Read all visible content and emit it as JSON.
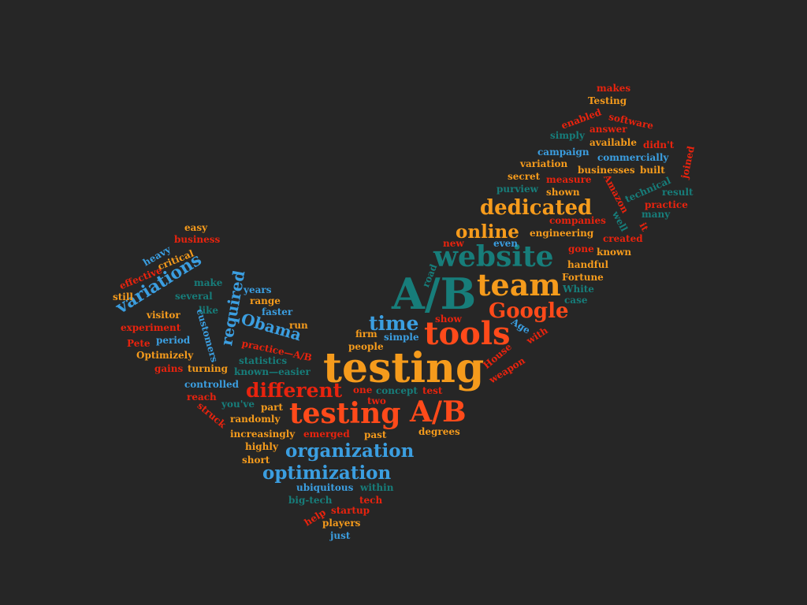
{
  "palette": {
    "background": "#262626",
    "red": "#e8230e",
    "orange": "#ff4a1a",
    "gold": "#f59b1c",
    "blue": "#3b9ee0",
    "teal": "#177d7a"
  },
  "words": [
    {
      "id": "w1",
      "text": "testing",
      "color": "#f59b1c"
    },
    {
      "id": "w2",
      "text": "A/B",
      "color": "#177d7a"
    },
    {
      "id": "w3",
      "text": "website",
      "color": "#177d7a"
    },
    {
      "id": "w4",
      "text": "team",
      "color": "#f59b1c"
    },
    {
      "id": "w5",
      "text": "tools",
      "color": "#ff4a1a"
    },
    {
      "id": "w6",
      "text": "testing",
      "color": "#ff4a1a"
    },
    {
      "id": "w7",
      "text": "A/B",
      "color": "#ff4a1a"
    },
    {
      "id": "w8",
      "text": "dedicated",
      "color": "#f59b1c"
    },
    {
      "id": "w9",
      "text": "online",
      "color": "#f59b1c"
    },
    {
      "id": "w10",
      "text": "Google",
      "color": "#ff4a1a"
    },
    {
      "id": "w11",
      "text": "time",
      "color": "#3b9ee0"
    },
    {
      "id": "w12",
      "text": "different",
      "color": "#e8230e"
    },
    {
      "id": "w13",
      "text": "organization",
      "color": "#3b9ee0"
    },
    {
      "id": "w14",
      "text": "optimization",
      "color": "#3b9ee0"
    },
    {
      "id": "w15",
      "text": "Obama",
      "color": "#3b9ee0"
    },
    {
      "id": "w16",
      "text": "variations",
      "color": "#3b9ee0"
    },
    {
      "id": "w17",
      "text": "required",
      "color": "#3b9ee0"
    },
    {
      "id": "w18",
      "text": "makes",
      "color": "#e8230e"
    },
    {
      "id": "w19",
      "text": "Testing",
      "color": "#f59b1c"
    },
    {
      "id": "w20",
      "text": "enabled",
      "color": "#e8230e"
    },
    {
      "id": "w21",
      "text": "software",
      "color": "#e8230e"
    },
    {
      "id": "w22",
      "text": "answer",
      "color": "#e8230e"
    },
    {
      "id": "w23",
      "text": "simply",
      "color": "#177d7a"
    },
    {
      "id": "w24",
      "text": "available",
      "color": "#f59b1c"
    },
    {
      "id": "w25",
      "text": "didn't",
      "color": "#e8230e"
    },
    {
      "id": "w26",
      "text": "campaign",
      "color": "#3b9ee0"
    },
    {
      "id": "w27",
      "text": "commercially",
      "color": "#3b9ee0"
    },
    {
      "id": "w28",
      "text": "joined",
      "color": "#e8230e"
    },
    {
      "id": "w29",
      "text": "variation",
      "color": "#f59b1c"
    },
    {
      "id": "w30",
      "text": "businesses",
      "color": "#f59b1c"
    },
    {
      "id": "w31",
      "text": "built",
      "color": "#f59b1c"
    },
    {
      "id": "w32",
      "text": "secret",
      "color": "#f59b1c"
    },
    {
      "id": "w33",
      "text": "measure",
      "color": "#e8230e"
    },
    {
      "id": "w34",
      "text": "technical",
      "color": "#177d7a"
    },
    {
      "id": "w35",
      "text": "purview",
      "color": "#177d7a"
    },
    {
      "id": "w36",
      "text": "shown",
      "color": "#f59b1c"
    },
    {
      "id": "w37",
      "text": "result",
      "color": "#177d7a"
    },
    {
      "id": "w38",
      "text": "Amazon",
      "color": "#e8230e"
    },
    {
      "id": "w39",
      "text": "it",
      "color": "#e8230e"
    },
    {
      "id": "w40",
      "text": "practice",
      "color": "#e8230e"
    },
    {
      "id": "w41",
      "text": "companies",
      "color": "#e8230e"
    },
    {
      "id": "w42",
      "text": "well",
      "color": "#177d7a"
    },
    {
      "id": "w43",
      "text": "many",
      "color": "#177d7a"
    },
    {
      "id": "w44",
      "text": "engineering",
      "color": "#f59b1c"
    },
    {
      "id": "w45",
      "text": "created",
      "color": "#e8230e"
    },
    {
      "id": "w46",
      "text": "new",
      "color": "#e8230e"
    },
    {
      "id": "w47",
      "text": "even",
      "color": "#3b9ee0"
    },
    {
      "id": "w48",
      "text": "gone",
      "color": "#e8230e"
    },
    {
      "id": "w49",
      "text": "known",
      "color": "#f59b1c"
    },
    {
      "id": "w50",
      "text": "handful",
      "color": "#f59b1c"
    },
    {
      "id": "w51",
      "text": "Fortune",
      "color": "#f59b1c"
    },
    {
      "id": "w52",
      "text": "White",
      "color": "#177d7a"
    },
    {
      "id": "w53",
      "text": "case",
      "color": "#177d7a"
    },
    {
      "id": "w54",
      "text": "road",
      "color": "#177d7a"
    },
    {
      "id": "w55",
      "text": "show",
      "color": "#e8230e"
    },
    {
      "id": "w56",
      "text": "Age",
      "color": "#3b9ee0"
    },
    {
      "id": "w57",
      "text": "with",
      "color": "#e8230e"
    },
    {
      "id": "w58",
      "text": "House",
      "color": "#e8230e"
    },
    {
      "id": "w59",
      "text": "weapon",
      "color": "#e8230e"
    },
    {
      "id": "w60",
      "text": "firm",
      "color": "#f59b1c"
    },
    {
      "id": "w61",
      "text": "simple",
      "color": "#3b9ee0"
    },
    {
      "id": "w62",
      "text": "people",
      "color": "#f59b1c"
    },
    {
      "id": "w63",
      "text": "one",
      "color": "#e8230e"
    },
    {
      "id": "w64",
      "text": "concept",
      "color": "#177d7a"
    },
    {
      "id": "w65",
      "text": "test",
      "color": "#e8230e"
    },
    {
      "id": "w66",
      "text": "two",
      "color": "#e8230e"
    },
    {
      "id": "w67",
      "text": "part",
      "color": "#f59b1c"
    },
    {
      "id": "w68",
      "text": "degrees",
      "color": "#f59b1c"
    },
    {
      "id": "w69",
      "text": "past",
      "color": "#f59b1c"
    },
    {
      "id": "w70",
      "text": "emerged",
      "color": "#e8230e"
    },
    {
      "id": "w71",
      "text": "easy",
      "color": "#f59b1c"
    },
    {
      "id": "w72",
      "text": "business",
      "color": "#e8230e"
    },
    {
      "id": "w73",
      "text": "heavy",
      "color": "#3b9ee0"
    },
    {
      "id": "w74",
      "text": "critical",
      "color": "#f59b1c"
    },
    {
      "id": "w75",
      "text": "effective",
      "color": "#e8230e"
    },
    {
      "id": "w76",
      "text": "make",
      "color": "#177d7a"
    },
    {
      "id": "w77",
      "text": "still",
      "color": "#f59b1c"
    },
    {
      "id": "w78",
      "text": "several",
      "color": "#177d7a"
    },
    {
      "id": "w79",
      "text": "years",
      "color": "#3b9ee0"
    },
    {
      "id": "w80",
      "text": "range",
      "color": "#f59b1c"
    },
    {
      "id": "w81",
      "text": "visitor",
      "color": "#f59b1c"
    },
    {
      "id": "w82",
      "text": "like",
      "color": "#177d7a"
    },
    {
      "id": "w83",
      "text": "faster",
      "color": "#3b9ee0"
    },
    {
      "id": "w84",
      "text": "experiment",
      "color": "#e8230e"
    },
    {
      "id": "w85",
      "text": "run",
      "color": "#f59b1c"
    },
    {
      "id": "w86",
      "text": "customers",
      "color": "#3b9ee0"
    },
    {
      "id": "w87",
      "text": "Pete",
      "color": "#e8230e"
    },
    {
      "id": "w88",
      "text": "period",
      "color": "#3b9ee0"
    },
    {
      "id": "w89",
      "text": "practice—A/B",
      "color": "#e8230e"
    },
    {
      "id": "w90",
      "text": "Optimizely",
      "color": "#f59b1c"
    },
    {
      "id": "w91",
      "text": "statistics",
      "color": "#177d7a"
    },
    {
      "id": "w92",
      "text": "gains",
      "color": "#e8230e"
    },
    {
      "id": "w93",
      "text": "turning",
      "color": "#f59b1c"
    },
    {
      "id": "w94",
      "text": "known—easier",
      "color": "#177d7a"
    },
    {
      "id": "w95",
      "text": "controlled",
      "color": "#3b9ee0"
    },
    {
      "id": "w96",
      "text": "reach",
      "color": "#e8230e"
    },
    {
      "id": "w97",
      "text": "you've",
      "color": "#177d7a"
    },
    {
      "id": "w98",
      "text": "struck",
      "color": "#e8230e"
    },
    {
      "id": "w99",
      "text": "randomly",
      "color": "#f59b1c"
    },
    {
      "id": "w100",
      "text": "increasingly",
      "color": "#f59b1c"
    },
    {
      "id": "w101",
      "text": "highly",
      "color": "#f59b1c"
    },
    {
      "id": "w102",
      "text": "short",
      "color": "#f59b1c"
    },
    {
      "id": "w103",
      "text": "ubiquitous",
      "color": "#3b9ee0"
    },
    {
      "id": "w104",
      "text": "within",
      "color": "#177d7a"
    },
    {
      "id": "w105",
      "text": "big-tech",
      "color": "#177d7a"
    },
    {
      "id": "w106",
      "text": "tech",
      "color": "#e8230e"
    },
    {
      "id": "w107",
      "text": "startup",
      "color": "#e8230e"
    },
    {
      "id": "w108",
      "text": "help",
      "color": "#e8230e"
    },
    {
      "id": "w109",
      "text": "players",
      "color": "#f59b1c"
    },
    {
      "id": "w110",
      "text": "just",
      "color": "#3b9ee0"
    }
  ]
}
